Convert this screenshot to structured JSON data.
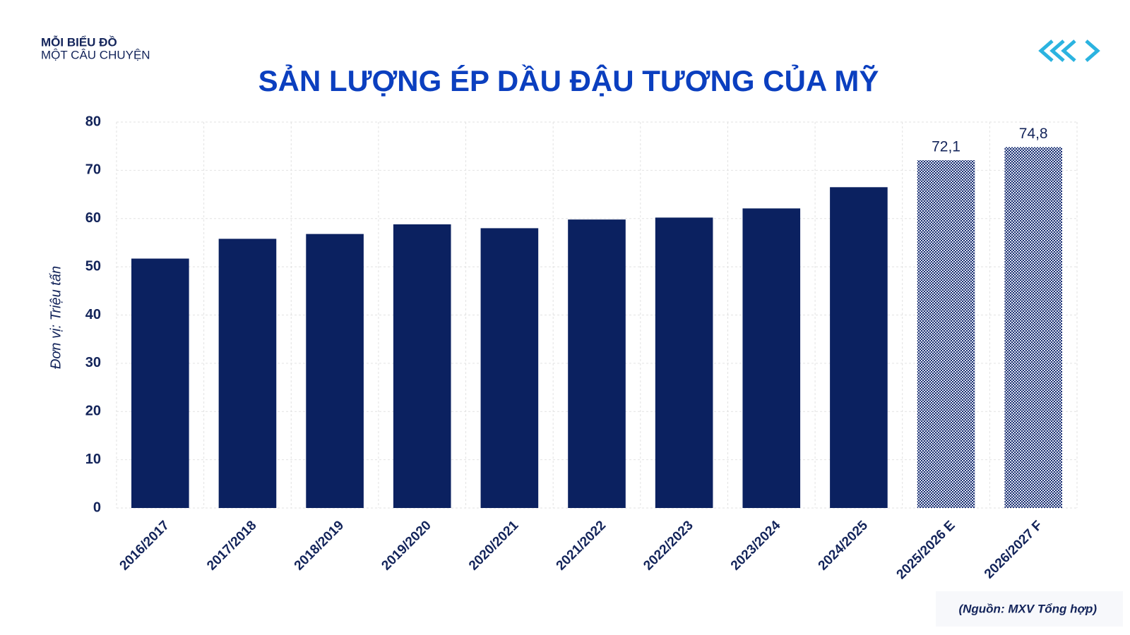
{
  "header": {
    "line1": "MỖI BIỂU ĐỒ",
    "line2": "MỘT CÂU CHUYỆN"
  },
  "chart_data": {
    "type": "bar",
    "title": "SẢN LƯỢNG ÉP DẦU ĐẬU TƯƠNG CỦA MỸ",
    "y_label": "Đơn vị: Triệu tấn",
    "categories": [
      "2016/2017",
      "2017/2018",
      "2018/2019",
      "2019/2020",
      "2020/2021",
      "2021/2022",
      "2022/2023",
      "2023/2024",
      "2024/2025",
      "2025/2026 E",
      "2026/2027 F"
    ],
    "values": [
      51.7,
      55.8,
      56.8,
      58.8,
      58.0,
      59.8,
      60.2,
      62.1,
      66.5,
      72.1,
      74.8
    ],
    "value_labels": [
      null,
      null,
      null,
      null,
      null,
      null,
      null,
      null,
      null,
      "72,1",
      "74,8"
    ],
    "bar_styles": [
      "solid",
      "solid",
      "solid",
      "solid",
      "solid",
      "solid",
      "solid",
      "solid",
      "solid",
      "dotted",
      "dotted"
    ],
    "color": "#0b2160",
    "ylim": [
      0,
      80
    ],
    "yticks": [
      0,
      10,
      20,
      30,
      40,
      50,
      60,
      70,
      80
    ],
    "grid": true
  },
  "source": "(Nguồn: MXV Tổng hợp)"
}
